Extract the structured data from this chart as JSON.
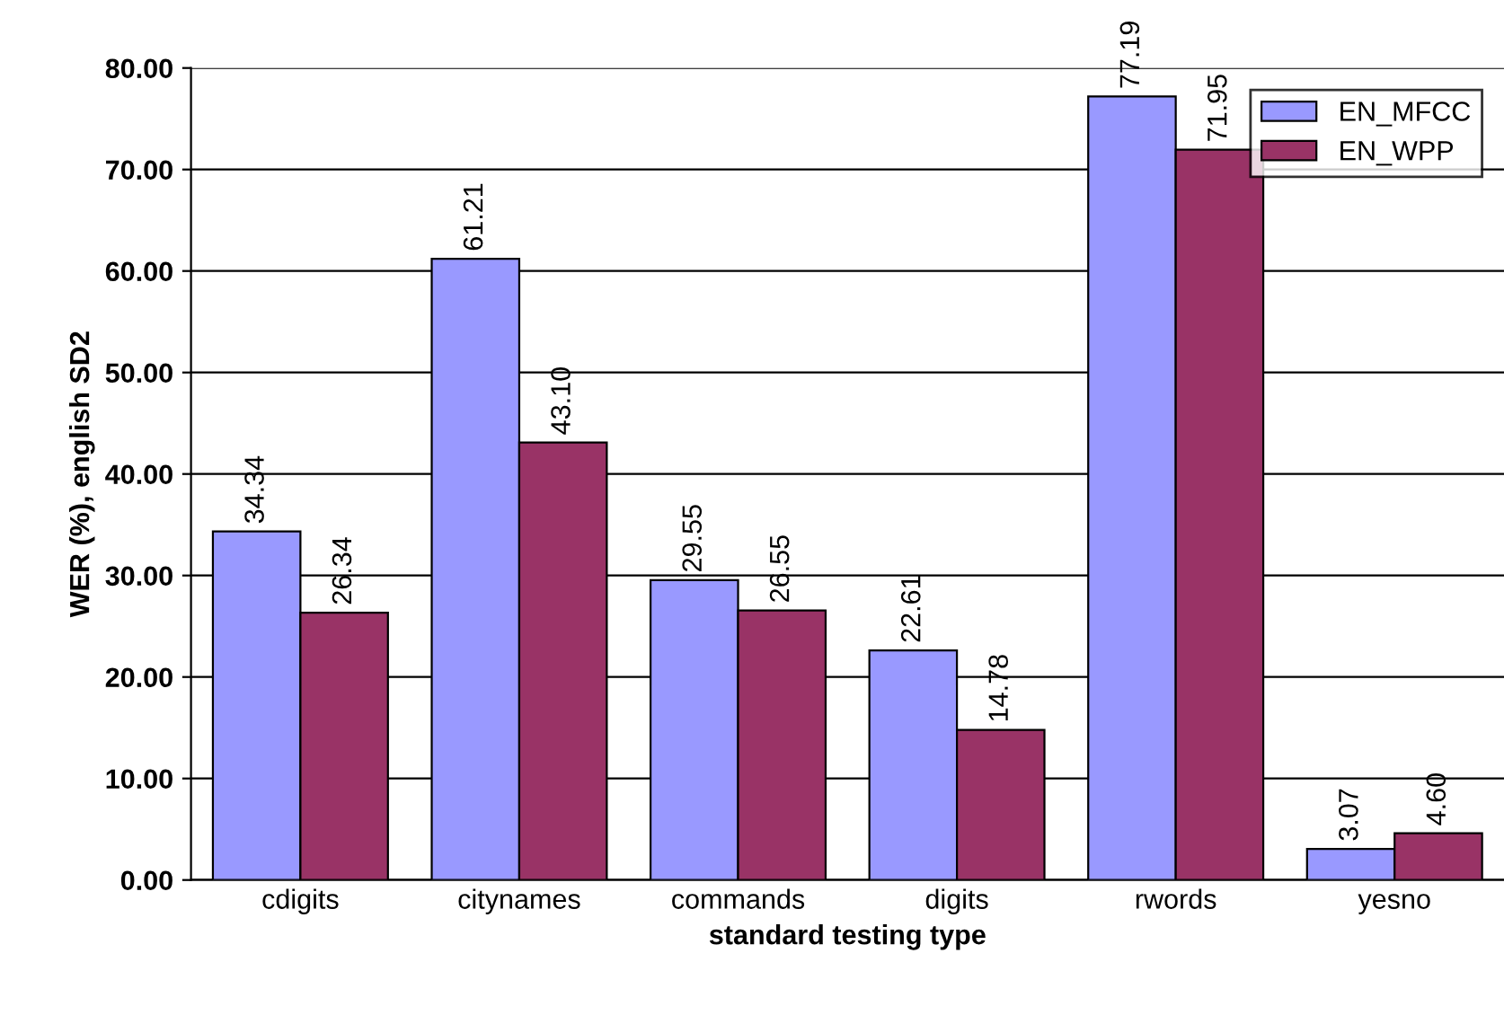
{
  "chart_data": {
    "type": "bar",
    "xlabel": "standard testing type",
    "ylabel": "WER (%), english SD2",
    "categories": [
      "cdigits",
      "citynames",
      "commands",
      "digits",
      "rwords",
      "yesno"
    ],
    "series": [
      {
        "name": "EN_MFCC",
        "color": "#9999ff",
        "values": [
          34.34,
          61.21,
          29.55,
          22.61,
          77.19,
          3.07
        ],
        "value_labels": [
          "34.34",
          "61.21",
          "29.55",
          "22.61",
          "77.19",
          "3.07"
        ]
      },
      {
        "name": "EN_WPP",
        "color": "#993366",
        "values": [
          26.34,
          43.1,
          26.55,
          14.78,
          71.95,
          4.6
        ],
        "value_labels": [
          "26.34",
          "43.10",
          "26.55",
          "14.78",
          "71.95",
          "4.60"
        ]
      }
    ],
    "ylim": [
      0,
      80
    ],
    "yticks": [
      {
        "value": 0,
        "label": "0.00"
      },
      {
        "value": 10,
        "label": "10.00"
      },
      {
        "value": 20,
        "label": "20.00"
      },
      {
        "value": 30,
        "label": "30.00"
      },
      {
        "value": 40,
        "label": "40.00"
      },
      {
        "value": 50,
        "label": "50.00"
      },
      {
        "value": 60,
        "label": "60.00"
      },
      {
        "value": 70,
        "label": "70.00"
      },
      {
        "value": 80,
        "label": "80.00"
      }
    ],
    "grid": "y",
    "legend": "top right"
  }
}
